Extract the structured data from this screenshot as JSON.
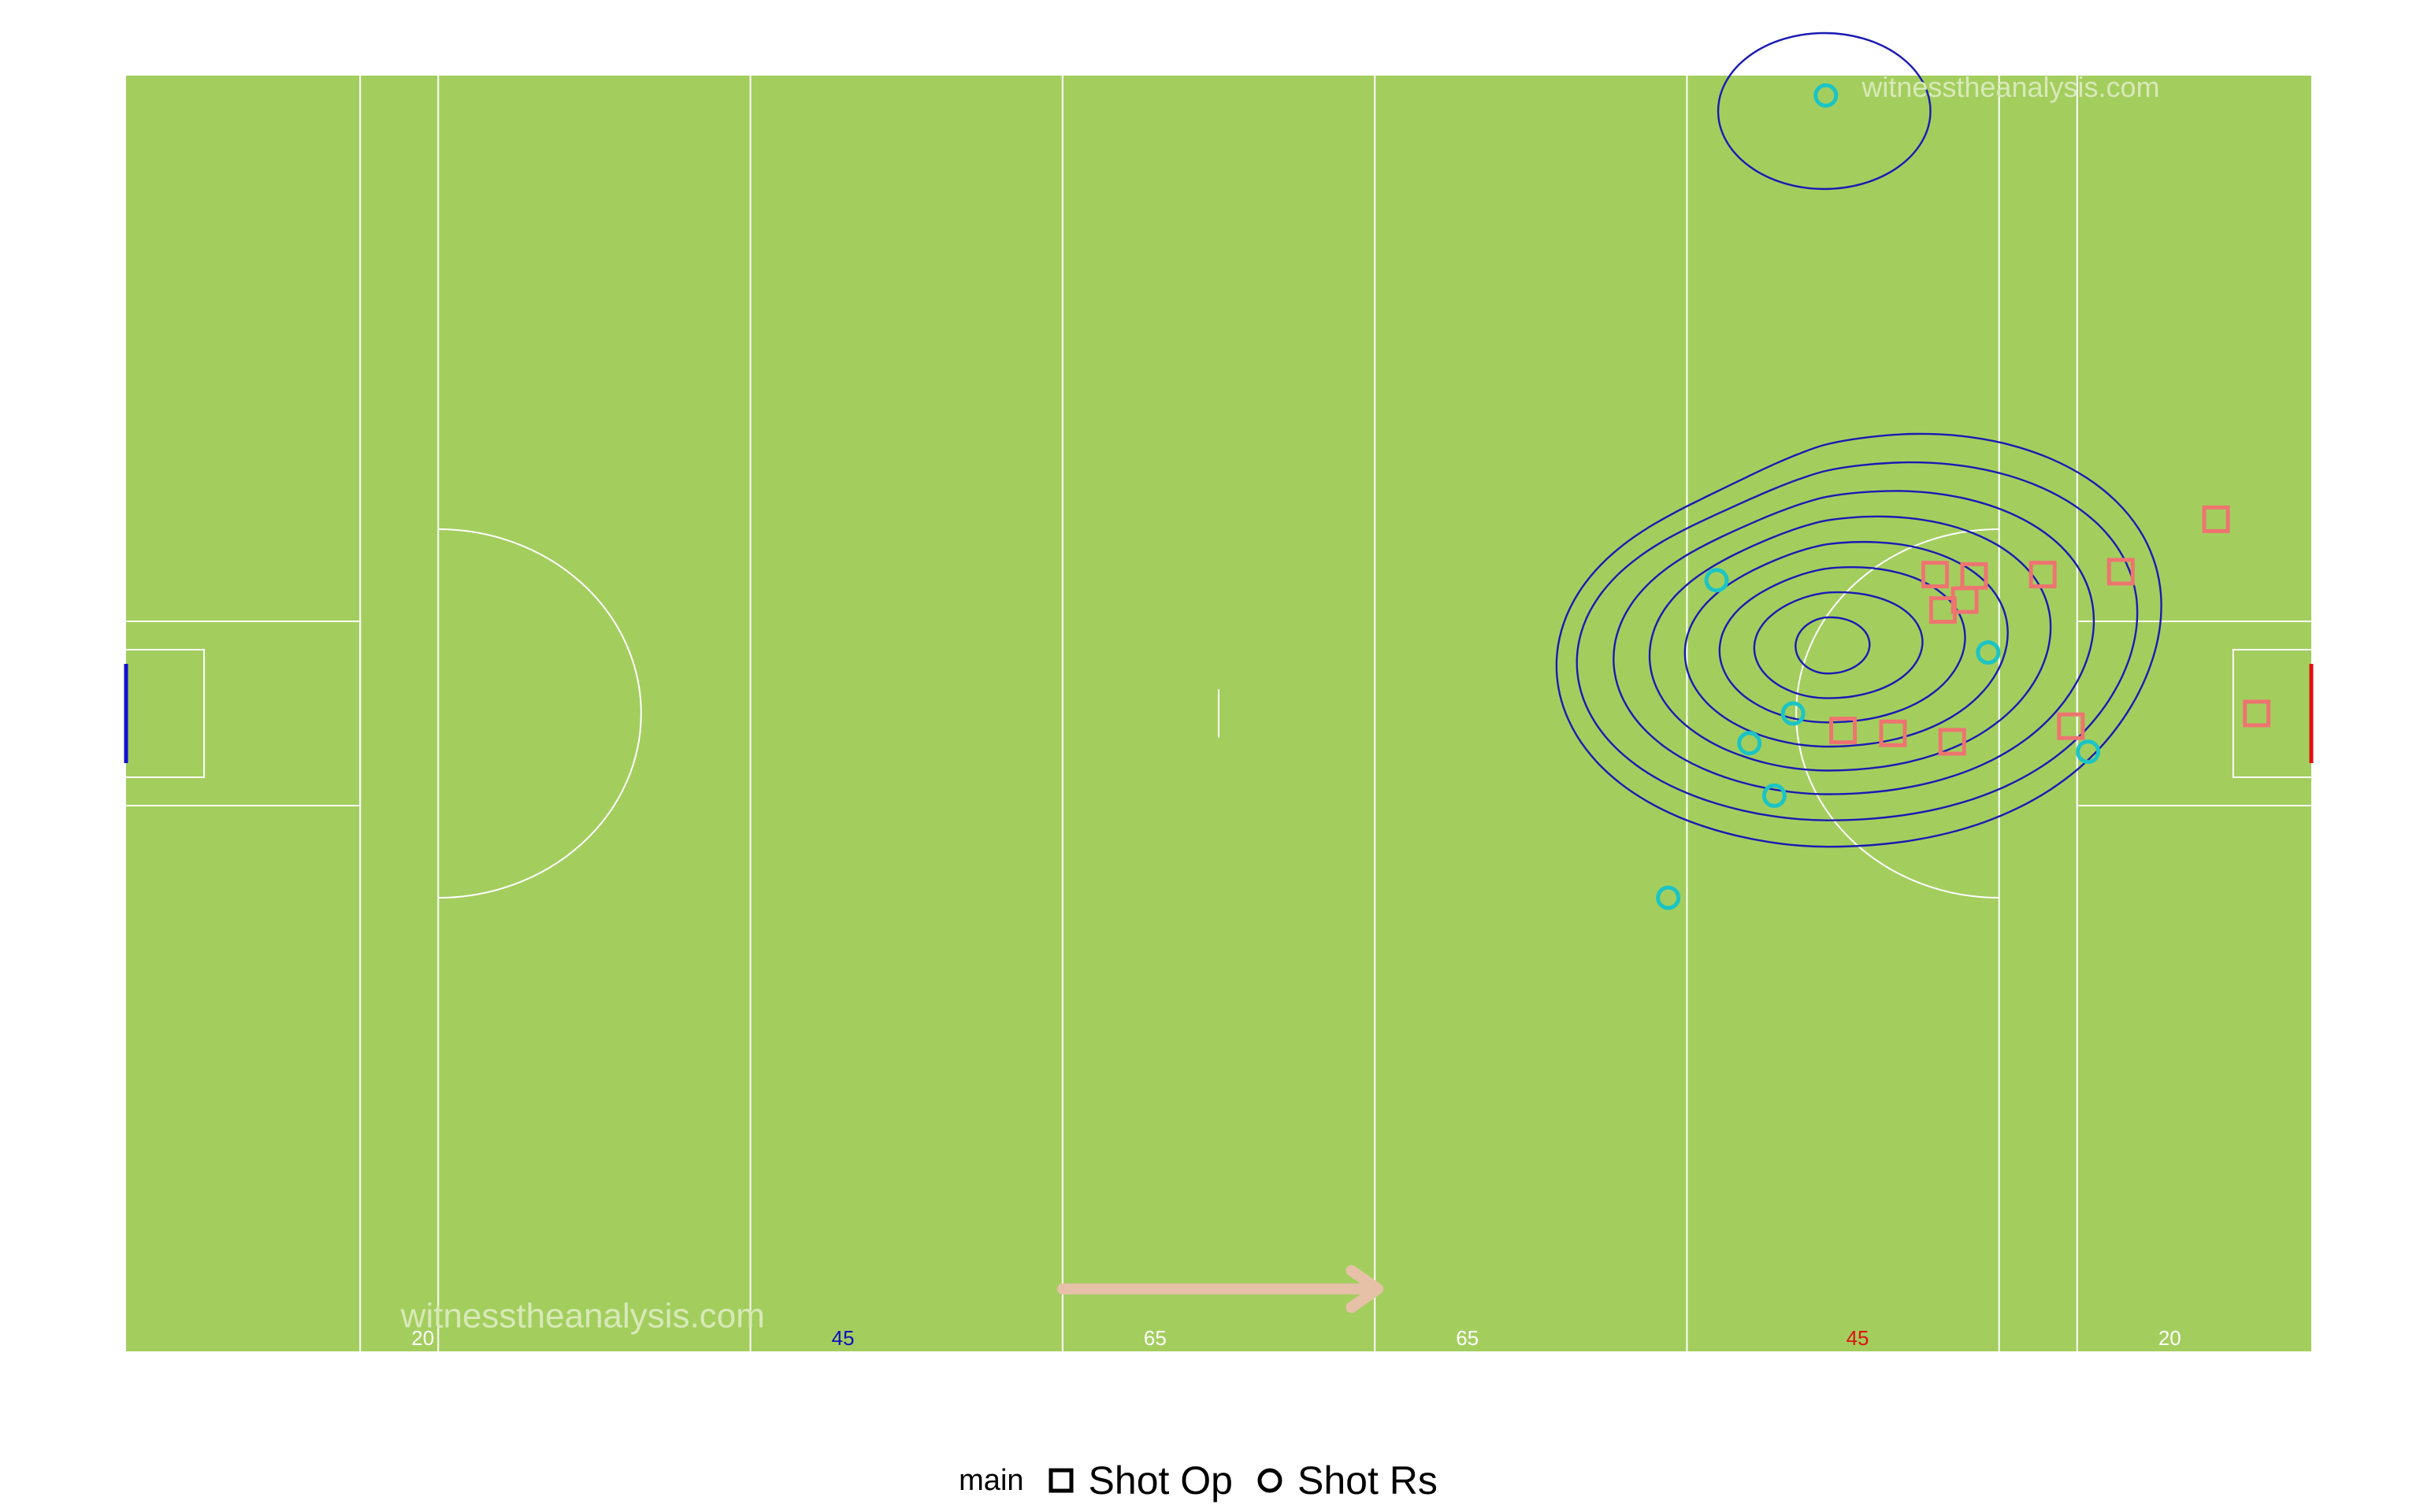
{
  "chart_data": {
    "type": "scatter",
    "title": "",
    "xlabel": "",
    "ylabel": "",
    "xlim": [
      0,
      140
    ],
    "ylim": [
      0,
      90
    ],
    "grid": false,
    "legend_position": "bottom",
    "legend_title": "main",
    "pitch_color": "#a3ce5e",
    "line_color": "#ffffff",
    "contour_color": "#1a1ab3",
    "attack_direction": "right",
    "watermarks": [
      "witnesstheanalysis.com",
      "witnesstheanalysis.com"
    ],
    "distance_labels": [
      {
        "text": "20",
        "x": 20,
        "color": "#ffffff"
      },
      {
        "text": "45",
        "x": 45,
        "color": "#1010c0"
      },
      {
        "text": "65",
        "x": 65,
        "color": "#ffffff"
      },
      {
        "text": "65",
        "x": 85,
        "color": "#ffffff"
      },
      {
        "text": "45",
        "x": 110,
        "color": "#e01010"
      },
      {
        "text": "20",
        "x": 130,
        "color": "#ffffff"
      }
    ],
    "series": [
      {
        "name": "Shot Op",
        "marker": "square",
        "color": "#ee7470",
        "points": [
          [
            110.0,
            43.8
          ],
          [
            116.4,
            52.3
          ],
          [
            115.9,
            54.8
          ],
          [
            118.4,
            54.7
          ],
          [
            117.8,
            53.0
          ],
          [
            113.2,
            43.6
          ],
          [
            122.8,
            54.8
          ],
          [
            127.8,
            55.0
          ],
          [
            133.9,
            58.7
          ],
          [
            117.0,
            43.0
          ],
          [
            124.6,
            44.1
          ],
          [
            136.5,
            45.0
          ]
        ]
      },
      {
        "name": "Shot Rs",
        "marker": "circle",
        "color": "#1cc4c4",
        "points": [
          [
            108.9,
            88.6
          ],
          [
            101.9,
            54.4
          ],
          [
            106.8,
            45.0
          ],
          [
            104.0,
            42.9
          ],
          [
            105.6,
            39.2
          ],
          [
            119.3,
            49.3
          ],
          [
            125.7,
            42.3
          ],
          [
            98.8,
            32.0
          ]
        ]
      }
    ]
  }
}
